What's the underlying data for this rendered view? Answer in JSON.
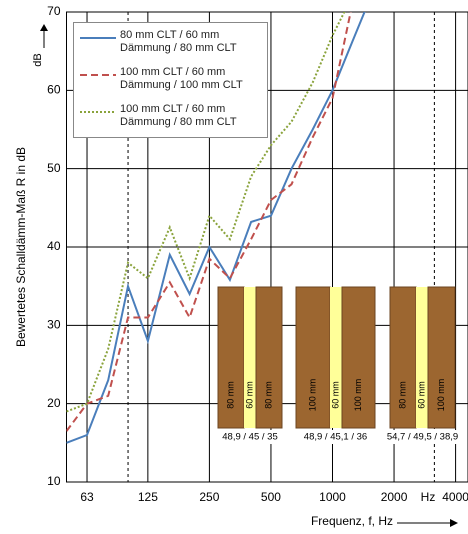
{
  "chart_data": {
    "type": "line",
    "y_label": "Bewertetes Schalldämm-Maß R in dB",
    "y_unit": "dB",
    "x_label": "Frequenz, f, Hz",
    "x_unit": "Hz",
    "x_log": true,
    "x": [
      50,
      63,
      80,
      100,
      125,
      160,
      200,
      250,
      315,
      400,
      500,
      630,
      800,
      1000,
      1250,
      1600
    ],
    "series": [
      {
        "name": "80 mm CLT / 60 mm Dämmung / 80 mm CLT",
        "color": "#4a7ebb",
        "dash": "solid",
        "values": [
          15,
          16,
          23,
          35,
          28,
          39,
          34,
          40,
          35.8,
          43.2,
          44,
          50,
          55,
          60,
          66.2,
          73
        ]
      },
      {
        "name": "100 mm CLT / 60 mm Dämmung / 100 mm CLT",
        "color": "#c0504d",
        "dash": "dashed",
        "values": [
          16.5,
          20,
          21,
          31,
          31,
          35.5,
          31,
          38.5,
          36,
          41,
          46,
          48,
          54,
          59,
          71,
          null
        ]
      },
      {
        "name": "100 mm CLT / 60 mm Dämmung / 80 mm CLT",
        "color": "#8aa33c",
        "dash": "dotted",
        "values": [
          19,
          20,
          27,
          38,
          36,
          42.5,
          36,
          44,
          41,
          49,
          53,
          56,
          61,
          67,
          72,
          null
        ]
      }
    ],
    "xlim": [
      50,
      4600
    ],
    "xticks": [
      63,
      125,
      250,
      500,
      1000,
      2000,
      4000
    ],
    "ylim": [
      10,
      70
    ],
    "yticks": [
      10,
      20,
      30,
      40,
      50,
      60,
      70
    ],
    "reference_lines": [
      100,
      3150
    ],
    "grid": true,
    "legend": "top-left",
    "constructions": [
      {
        "layers": [
          "80 mm",
          "60 mm",
          "80 mm"
        ],
        "label": "48,9 / 45 / 35"
      },
      {
        "layers": [
          "100 mm",
          "60 mm",
          "100 mm"
        ],
        "label": "48,9 / 45,1 / 36"
      },
      {
        "layers": [
          "80 mm",
          "60 mm",
          "100 mm"
        ],
        "label": "54,7 / 49,5 / 38,9"
      }
    ]
  }
}
